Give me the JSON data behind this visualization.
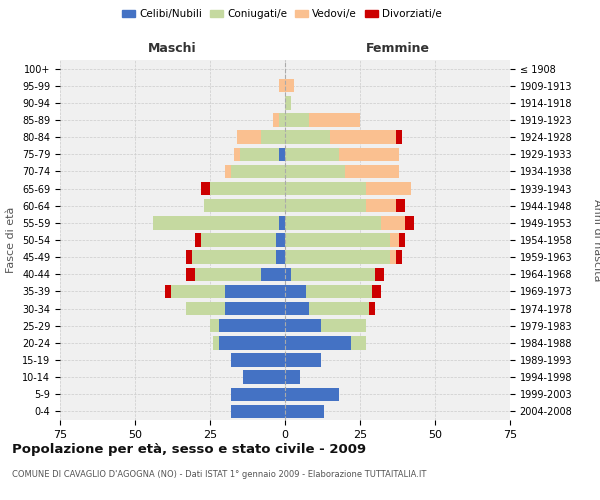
{
  "age_groups": [
    "0-4",
    "5-9",
    "10-14",
    "15-19",
    "20-24",
    "25-29",
    "30-34",
    "35-39",
    "40-44",
    "45-49",
    "50-54",
    "55-59",
    "60-64",
    "65-69",
    "70-74",
    "75-79",
    "80-84",
    "85-89",
    "90-94",
    "95-99",
    "100+"
  ],
  "birth_years": [
    "2004-2008",
    "1999-2003",
    "1994-1998",
    "1989-1993",
    "1984-1988",
    "1979-1983",
    "1974-1978",
    "1969-1973",
    "1964-1968",
    "1959-1963",
    "1954-1958",
    "1949-1953",
    "1944-1948",
    "1939-1943",
    "1934-1938",
    "1929-1933",
    "1924-1928",
    "1919-1923",
    "1914-1918",
    "1909-1913",
    "≤ 1908"
  ],
  "male": {
    "celibe": [
      18,
      18,
      14,
      18,
      22,
      22,
      20,
      20,
      8,
      3,
      3,
      2,
      0,
      0,
      0,
      2,
      0,
      0,
      0,
      0,
      0
    ],
    "coniugato": [
      0,
      0,
      0,
      0,
      2,
      3,
      13,
      18,
      22,
      28,
      25,
      42,
      27,
      25,
      18,
      13,
      8,
      2,
      0,
      0,
      0
    ],
    "vedovo": [
      0,
      0,
      0,
      0,
      0,
      0,
      0,
      0,
      0,
      0,
      0,
      0,
      0,
      0,
      2,
      2,
      8,
      2,
      0,
      2,
      0
    ],
    "divorziato": [
      0,
      0,
      0,
      0,
      0,
      0,
      0,
      2,
      3,
      2,
      2,
      0,
      0,
      3,
      0,
      0,
      0,
      0,
      0,
      0,
      0
    ]
  },
  "female": {
    "nubile": [
      13,
      18,
      5,
      12,
      22,
      12,
      8,
      7,
      2,
      0,
      0,
      0,
      0,
      0,
      0,
      0,
      0,
      0,
      0,
      0,
      0
    ],
    "coniugata": [
      0,
      0,
      0,
      0,
      5,
      15,
      20,
      22,
      28,
      35,
      35,
      32,
      27,
      27,
      20,
      18,
      15,
      8,
      2,
      0,
      0
    ],
    "vedova": [
      0,
      0,
      0,
      0,
      0,
      0,
      0,
      0,
      0,
      2,
      3,
      8,
      10,
      15,
      18,
      20,
      22,
      17,
      0,
      3,
      0
    ],
    "divorziata": [
      0,
      0,
      0,
      0,
      0,
      0,
      2,
      3,
      3,
      2,
      2,
      3,
      3,
      0,
      0,
      0,
      2,
      0,
      0,
      0,
      0
    ]
  },
  "colors": {
    "celibe": "#4472C4",
    "coniugato": "#C5D9A0",
    "vedovo": "#FAC090",
    "divorziato": "#CC0000"
  },
  "xlim": 75,
  "title": "Popolazione per età, sesso e stato civile - 2009",
  "subtitle": "COMUNE DI CAVAGLIO D'AGOGNA (NO) - Dati ISTAT 1° gennaio 2009 - Elaborazione TUTTAITALIA.IT",
  "xlabel_left": "Maschi",
  "xlabel_right": "Femmine",
  "ylabel": "Fasce di età",
  "ylabel_right": "Anni di nascita",
  "bg_color": "#FFFFFF",
  "plot_bg": "#F0F0F0",
  "grid_color": "#CCCCCC"
}
